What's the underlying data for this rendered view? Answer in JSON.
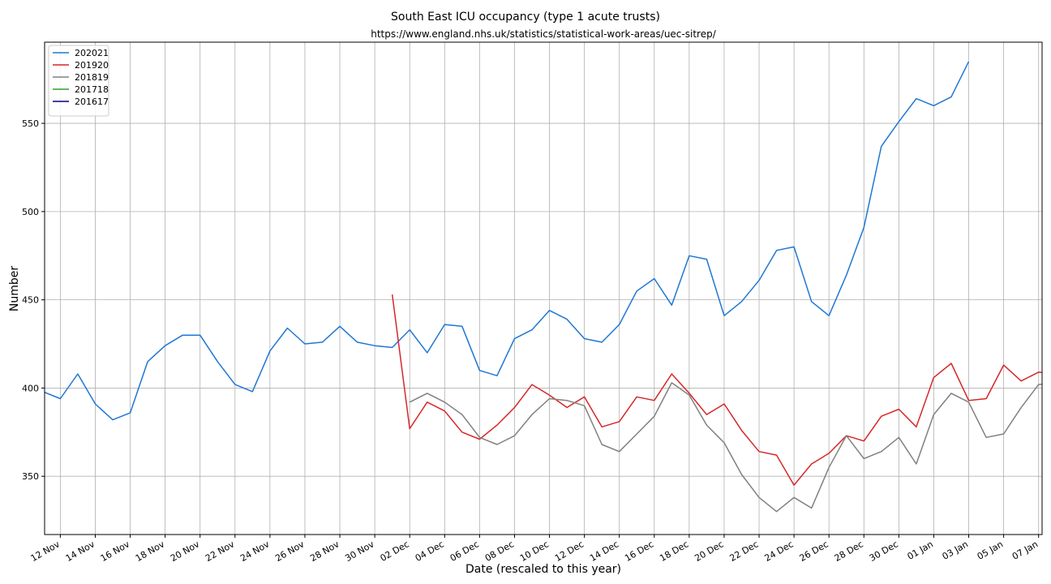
{
  "chart_data": {
    "type": "line",
    "title": "South East ICU occupancy (type 1 acute trusts)",
    "subtitle": "https://www.england.nhs.uk/statistics/statistical-work-areas/uec-sitrep/",
    "xlabel": "Date (rescaled to this year)",
    "ylabel": "Number",
    "x_start": "12 Nov",
    "x_end": "07 Jan",
    "xlim": [
      -0.9,
      56.2
    ],
    "ylim": [
      317,
      596
    ],
    "grid": true,
    "legend_position": "upper left",
    "x_tick_positions": [
      0,
      2,
      4,
      6,
      8,
      10,
      12,
      14,
      16,
      18,
      20,
      22,
      24,
      26,
      28,
      30,
      32,
      34,
      36,
      38,
      40,
      42,
      44,
      46,
      48,
      50,
      52,
      54,
      56
    ],
    "x_tick_labels": [
      "12 Nov",
      "14 Nov",
      "16 Nov",
      "18 Nov",
      "20 Nov",
      "22 Nov",
      "24 Nov",
      "26 Nov",
      "28 Nov",
      "30 Nov",
      "02 Dec",
      "04 Dec",
      "06 Dec",
      "08 Dec",
      "10 Dec",
      "12 Dec",
      "14 Dec",
      "16 Dec",
      "18 Dec",
      "20 Dec",
      "22 Dec",
      "24 Dec",
      "26 Dec",
      "28 Dec",
      "30 Dec",
      "01 Jan",
      "03 Jan",
      "05 Jan",
      "07 Jan"
    ],
    "y_ticks": [
      350,
      400,
      450,
      500,
      550
    ],
    "series": [
      {
        "name": "202021",
        "color": "#1f77d4",
        "x_start": -1,
        "values": [
          398,
          394,
          408,
          391,
          382,
          386,
          415,
          424,
          430,
          430,
          415,
          402,
          398,
          421,
          434,
          425,
          426,
          435,
          426,
          424,
          423,
          433,
          420,
          436,
          435,
          410,
          407,
          428,
          433,
          444,
          439,
          428,
          426,
          436,
          455,
          462,
          447,
          475,
          473,
          441,
          449,
          461,
          478,
          480,
          449,
          441,
          464,
          491,
          537,
          551,
          564,
          560,
          565,
          585
        ]
      },
      {
        "name": "201920",
        "color": "#d62728",
        "x_start": 19,
        "values": [
          453,
          377,
          392,
          387,
          375,
          371,
          379,
          389,
          402,
          396,
          389,
          395,
          378,
          381,
          395,
          393,
          408,
          397,
          385,
          391,
          376,
          364,
          362,
          345,
          357,
          363,
          373,
          370,
          384,
          388,
          378,
          406,
          414,
          393,
          394,
          413,
          404,
          409,
          408
        ]
      },
      {
        "name": "201819",
        "color": "#808080",
        "x_start": 20,
        "values": [
          392,
          397,
          392,
          385,
          372,
          368,
          373,
          385,
          394,
          393,
          390,
          368,
          364,
          374,
          384,
          403,
          396,
          379,
          369,
          351,
          338,
          330,
          338,
          332,
          355,
          373,
          360,
          364,
          372,
          357,
          385,
          397,
          392,
          372,
          374,
          389,
          402,
          403
        ]
      },
      {
        "name": "201718",
        "color": "#2ca02c",
        "x_start": 0,
        "values": []
      },
      {
        "name": "201617",
        "color": "#000080",
        "x_start": 0,
        "values": []
      }
    ]
  }
}
